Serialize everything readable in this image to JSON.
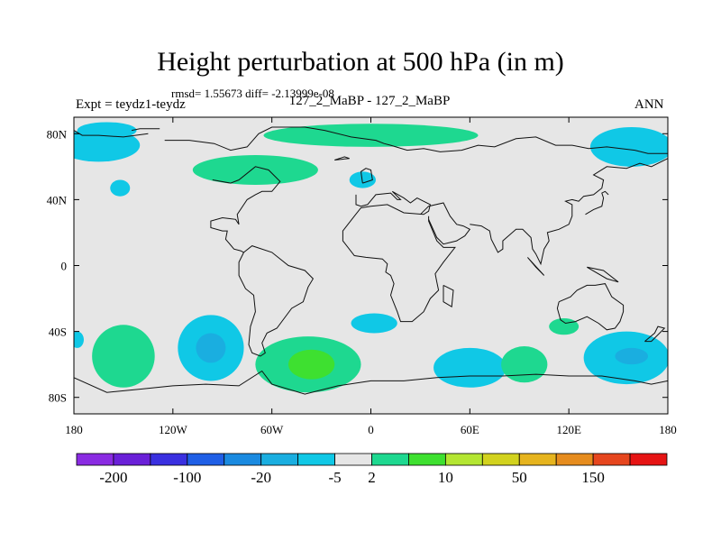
{
  "chart_data": {
    "type": "heatmap",
    "title": "Height perturbation at 500 hPa (in m)",
    "stats_line": "rmsd= 1.55673 diff= -2.13999e-08",
    "left_label": "Expt = teydz1-teydz",
    "center_label": "127_2_MaBP - 127_2_MaBP",
    "right_label": "ANN",
    "projection": "cylindrical-equidistant",
    "xlim": [
      -180,
      180
    ],
    "ylim": [
      -90,
      90
    ],
    "x_ticks": [
      {
        "value": -180,
        "label": "180"
      },
      {
        "value": -120,
        "label": "120W"
      },
      {
        "value": -60,
        "label": "60W"
      },
      {
        "value": 0,
        "label": "0"
      },
      {
        "value": 60,
        "label": "60E"
      },
      {
        "value": 120,
        "label": "120E"
      },
      {
        "value": 180,
        "label": "180"
      }
    ],
    "y_ticks": [
      {
        "value": 80,
        "label": "80N"
      },
      {
        "value": 40,
        "label": "40N"
      },
      {
        "value": 0,
        "label": "0"
      },
      {
        "value": -40,
        "label": "40S"
      },
      {
        "value": -80,
        "label": "80S"
      }
    ],
    "background_color": "#e6e6e6",
    "colorbar": {
      "colors": [
        "#8a2be2",
        "#6a20d8",
        "#3a30e0",
        "#1f5fe6",
        "#1a8ae0",
        "#1aaee0",
        "#10c8e6",
        "#e6e6e6",
        "#1ed890",
        "#3ee030",
        "#b4e632",
        "#d2d21e",
        "#e6b41e",
        "#e68c1e",
        "#e6461e",
        "#e61414"
      ],
      "labels": [
        {
          "after_box": 1,
          "label": "-200"
        },
        {
          "after_box": 3,
          "label": "-100"
        },
        {
          "after_box": 5,
          "label": "-20"
        },
        {
          "after_box": 7,
          "label": "-5"
        },
        {
          "after_box": 8,
          "label": "2"
        },
        {
          "after_box": 10,
          "label": "10"
        },
        {
          "after_box": 12,
          "label": "50"
        },
        {
          "after_box": 14,
          "label": "150"
        }
      ]
    },
    "regions": [
      {
        "lon": -165,
        "lat": 73,
        "rlon": 25,
        "rlat": 10,
        "color": "#10c8e6"
      },
      {
        "lon": -160,
        "lat": 82,
        "rlon": 18,
        "rlat": 5,
        "color": "#10c8e6"
      },
      {
        "lon": -152,
        "lat": 47,
        "rlon": 6,
        "rlat": 5,
        "color": "#10c8e6"
      },
      {
        "lon": 0,
        "lat": 79,
        "rlon": 65,
        "rlat": 7,
        "color": "#1ed890"
      },
      {
        "lon": -70,
        "lat": 58,
        "rlon": 38,
        "rlat": 9,
        "color": "#1ed890"
      },
      {
        "lon": -5,
        "lat": 52,
        "rlon": 8,
        "rlat": 5,
        "color": "#10c8e6"
      },
      {
        "lon": 158,
        "lat": 72,
        "rlon": 25,
        "rlat": 12,
        "color": "#10c8e6"
      },
      {
        "lon": -150,
        "lat": -55,
        "rlon": 19,
        "rlat": 19,
        "color": "#1ed890"
      },
      {
        "lon": -97,
        "lat": -50,
        "rlon": 20,
        "rlat": 20,
        "color": "#10c8e6"
      },
      {
        "lon": -97,
        "lat": -50,
        "rlon": 9,
        "rlat": 9,
        "color": "#1aaee0"
      },
      {
        "lon": -38,
        "lat": -60,
        "rlon": 32,
        "rlat": 17,
        "color": "#1ed890"
      },
      {
        "lon": -36,
        "lat": -60,
        "rlon": 14,
        "rlat": 9,
        "color": "#3ee030"
      },
      {
        "lon": 2,
        "lat": -35,
        "rlon": 14,
        "rlat": 6,
        "color": "#10c8e6"
      },
      {
        "lon": 60,
        "lat": -62,
        "rlon": 22,
        "rlat": 12,
        "color": "#10c8e6"
      },
      {
        "lon": 93,
        "lat": -60,
        "rlon": 14,
        "rlat": 11,
        "color": "#1ed890"
      },
      {
        "lon": 117,
        "lat": -37,
        "rlon": 9,
        "rlat": 5,
        "color": "#1ed890"
      },
      {
        "lon": 155,
        "lat": -56,
        "rlon": 26,
        "rlat": 16,
        "color": "#10c8e6"
      },
      {
        "lon": 158,
        "lat": -55,
        "rlon": 10,
        "rlat": 5,
        "color": "#1aaee0"
      },
      {
        "lon": -178,
        "lat": -45,
        "rlon": 4,
        "rlat": 5,
        "color": "#10c8e6"
      }
    ],
    "coastlines": [
      [
        [
          -180,
          82
        ],
        [
          -175,
          79
        ],
        [
          -165,
          79
        ],
        [
          -150,
          78
        ],
        [
          -135,
          80
        ]
      ],
      [
        [
          -145,
          82
        ],
        [
          -140,
          83
        ],
        [
          -128,
          83
        ]
      ],
      [
        [
          -125,
          76
        ],
        [
          -110,
          76
        ],
        [
          -95,
          74
        ],
        [
          -85,
          70
        ],
        [
          -75,
          72
        ],
        [
          -68,
          80
        ],
        [
          -60,
          84
        ],
        [
          -40,
          84
        ],
        [
          -28,
          82
        ],
        [
          -12,
          78
        ],
        [
          3,
          76
        ],
        [
          8,
          74
        ],
        [
          12,
          73
        ],
        [
          22,
          70
        ],
        [
          32,
          71
        ],
        [
          42,
          69
        ],
        [
          55,
          70
        ],
        [
          65,
          73
        ],
        [
          75,
          72
        ],
        [
          88,
          77
        ],
        [
          100,
          78
        ],
        [
          112,
          73
        ],
        [
          122,
          73
        ],
        [
          132,
          71
        ],
        [
          143,
          72
        ],
        [
          160,
          70
        ],
        [
          168,
          68
        ],
        [
          180,
          68
        ]
      ],
      [
        [
          -96,
          52
        ],
        [
          -85,
          50
        ],
        [
          -80,
          52
        ],
        [
          -70,
          60
        ],
        [
          -62,
          58
        ],
        [
          -55,
          51
        ],
        [
          -60,
          45
        ],
        [
          -66,
          45
        ],
        [
          -70,
          43
        ],
        [
          -75,
          40
        ],
        [
          -81,
          31
        ],
        [
          -80,
          25
        ],
        [
          -82,
          28
        ],
        [
          -90,
          29
        ],
        [
          -97,
          27
        ],
        [
          -97,
          23
        ],
        [
          -90,
          21
        ],
        [
          -87,
          21
        ],
        [
          -88,
          16
        ],
        [
          -83,
          10
        ],
        [
          -79,
          9
        ],
        [
          -77,
          8
        ]
      ],
      [
        [
          -77,
          8
        ],
        [
          -80,
          2
        ],
        [
          -80,
          -6
        ],
        [
          -76,
          -14
        ],
        [
          -71,
          -18
        ],
        [
          -70,
          -28
        ],
        [
          -73,
          -37
        ],
        [
          -74,
          -48
        ],
        [
          -72,
          -53
        ],
        [
          -67,
          -55
        ],
        [
          -64,
          -53
        ],
        [
          -66,
          -47
        ],
        [
          -63,
          -41
        ],
        [
          -57,
          -38
        ],
        [
          -48,
          -26
        ],
        [
          -41,
          -22
        ],
        [
          -38,
          -13
        ],
        [
          -35,
          -8
        ],
        [
          -40,
          -3
        ],
        [
          -50,
          0
        ],
        [
          -60,
          8
        ],
        [
          -72,
          12
        ],
        [
          -77,
          8
        ]
      ],
      [
        [
          -9,
          43
        ],
        [
          -9,
          37
        ],
        [
          -6,
          36
        ],
        [
          -2,
          37
        ],
        [
          3,
          43
        ],
        [
          12,
          44
        ],
        [
          16,
          40
        ],
        [
          18,
          40
        ],
        [
          13,
          45
        ],
        [
          20,
          41
        ],
        [
          24,
          38
        ],
        [
          28,
          41
        ],
        [
          36,
          37
        ],
        [
          35,
          33
        ],
        [
          32,
          31
        ],
        [
          20,
          32
        ],
        [
          10,
          37
        ],
        [
          0,
          36
        ],
        [
          -6,
          35
        ],
        [
          -10,
          30
        ],
        [
          -17,
          21
        ],
        [
          -17,
          15
        ],
        [
          -10,
          6
        ],
        [
          -3,
          5
        ],
        [
          7,
          4
        ],
        [
          10,
          1
        ],
        [
          9,
          -4
        ],
        [
          12,
          -6
        ],
        [
          14,
          -11
        ],
        [
          12,
          -18
        ],
        [
          16,
          -28
        ],
        [
          18,
          -34
        ],
        [
          25,
          -34
        ],
        [
          32,
          -28
        ],
        [
          36,
          -20
        ],
        [
          41,
          -15
        ],
        [
          40,
          -10
        ],
        [
          39,
          -5
        ],
        [
          44,
          2
        ],
        [
          51,
          11
        ],
        [
          44,
          11
        ],
        [
          40,
          15
        ],
        [
          35,
          27
        ],
        [
          35,
          30
        ]
      ],
      [
        [
          30,
          31
        ],
        [
          35,
          36
        ],
        [
          44,
          38
        ],
        [
          48,
          30
        ],
        [
          52,
          25
        ],
        [
          56,
          24
        ],
        [
          60,
          22
        ],
        [
          57,
          18
        ],
        [
          52,
          15
        ],
        [
          44,
          13
        ],
        [
          40,
          17
        ],
        [
          35,
          28
        ]
      ],
      [
        [
          60,
          25
        ],
        [
          67,
          24
        ],
        [
          72,
          21
        ],
        [
          73,
          16
        ],
        [
          77,
          8
        ],
        [
          80,
          10
        ],
        [
          80,
          15
        ],
        [
          88,
          22
        ],
        [
          92,
          22
        ],
        [
          97,
          17
        ],
        [
          98,
          10
        ],
        [
          100,
          7
        ],
        [
          103,
          1
        ],
        [
          105,
          10
        ],
        [
          108,
          15
        ],
        [
          107,
          20
        ],
        [
          114,
          22
        ],
        [
          120,
          25
        ],
        [
          122,
          30
        ],
        [
          122,
          37
        ],
        [
          118,
          39
        ],
        [
          122,
          40
        ],
        [
          126,
          39
        ],
        [
          129,
          42
        ],
        [
          135,
          43
        ],
        [
          140,
          47
        ],
        [
          141,
          52
        ],
        [
          135,
          55
        ],
        [
          143,
          60
        ],
        [
          155,
          59
        ],
        [
          163,
          62
        ],
        [
          170,
          60
        ],
        [
          180,
          65
        ]
      ],
      [
        [
          114,
          -22
        ],
        [
          113,
          -26
        ],
        [
          115,
          -33
        ],
        [
          118,
          -35
        ],
        [
          124,
          -34
        ],
        [
          131,
          -31
        ],
        [
          138,
          -35
        ],
        [
          143,
          -39
        ],
        [
          148,
          -38
        ],
        [
          151,
          -34
        ],
        [
          153,
          -28
        ],
        [
          153,
          -24
        ],
        [
          146,
          -19
        ],
        [
          142,
          -11
        ],
        [
          136,
          -12
        ],
        [
          131,
          -12
        ],
        [
          125,
          -15
        ],
        [
          121,
          -19
        ],
        [
          114,
          -22
        ]
      ],
      [
        [
          -180,
          -68
        ],
        [
          -160,
          -77
        ],
        [
          -140,
          -75
        ],
        [
          -120,
          -73
        ],
        [
          -100,
          -72
        ],
        [
          -80,
          -73
        ],
        [
          -66,
          -64
        ],
        [
          -60,
          -72
        ],
        [
          -40,
          -78
        ],
        [
          -20,
          -73
        ],
        [
          0,
          -70
        ],
        [
          20,
          -70
        ],
        [
          40,
          -68
        ],
        [
          60,
          -67
        ],
        [
          80,
          -67
        ],
        [
          100,
          -66
        ],
        [
          120,
          -67
        ],
        [
          140,
          -67
        ],
        [
          160,
          -70
        ],
        [
          170,
          -72
        ],
        [
          180,
          -70
        ]
      ],
      [
        [
          130,
          31
        ],
        [
          135,
          34
        ],
        [
          140,
          36
        ],
        [
          141,
          41
        ],
        [
          140,
          44
        ],
        [
          142,
          45
        ],
        [
          144,
          43
        ]
      ],
      [
        [
          -5,
          50
        ],
        [
          1,
          52
        ],
        [
          0,
          58
        ],
        [
          -3,
          59
        ],
        [
          -6,
          57
        ],
        [
          -5,
          50
        ]
      ],
      [
        [
          -22,
          64
        ],
        [
          -16,
          66
        ],
        [
          -13,
          65
        ],
        [
          -22,
          64
        ]
      ],
      [
        [
          95,
          5
        ],
        [
          105,
          -6
        ],
        [
          100,
          -1
        ],
        [
          95,
          5
        ]
      ],
      [
        [
          131,
          -1
        ],
        [
          141,
          -3
        ],
        [
          150,
          -10
        ],
        [
          143,
          -8
        ],
        [
          131,
          -1
        ]
      ],
      [
        [
          44,
          -12
        ],
        [
          50,
          -15
        ],
        [
          49,
          -25
        ],
        [
          44,
          -22
        ],
        [
          44,
          -12
        ]
      ],
      [
        [
          166,
          -46
        ],
        [
          172,
          -41
        ],
        [
          174,
          -37
        ],
        [
          178,
          -38
        ],
        [
          170,
          -46
        ],
        [
          166,
          -46
        ]
      ]
    ]
  }
}
